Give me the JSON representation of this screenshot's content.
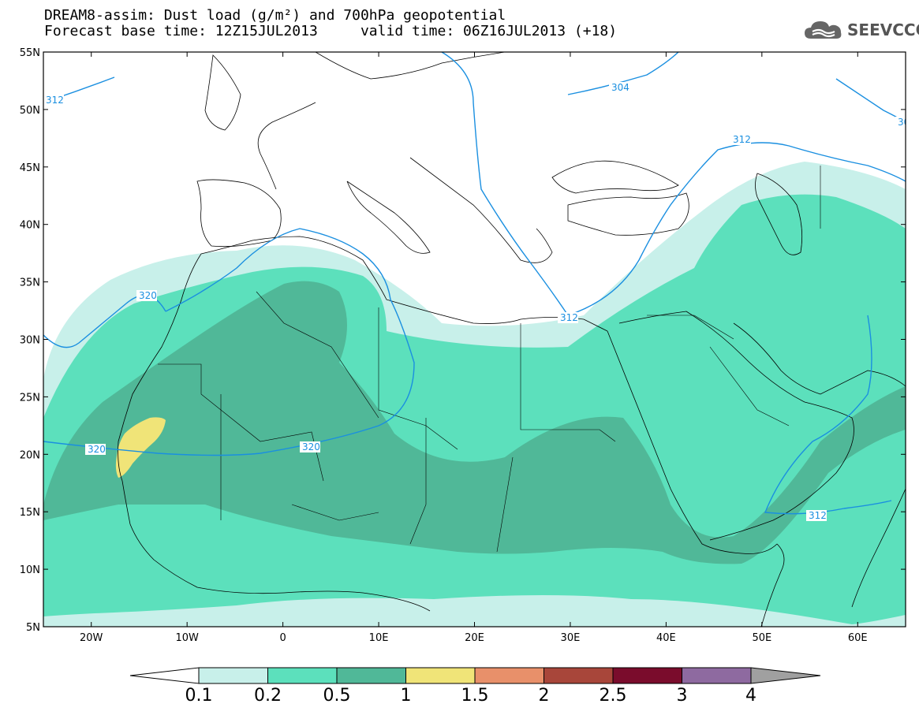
{
  "header": {
    "title_line1": "DREAM8-assim: Dust load (g/m²) and 700hPa geopotential",
    "title_line2": "Forecast base time: 12Z15JUL2013     valid time: 06Z16JUL2013 (+18)"
  },
  "logo": {
    "text": "SEEVCCC"
  },
  "axes": {
    "lat_labels": [
      "55N",
      "50N",
      "45N",
      "40N",
      "35N",
      "30N",
      "25N",
      "20N",
      "15N",
      "10N",
      "5N"
    ],
    "lon_labels": [
      "20W",
      "10W",
      "0",
      "10E",
      "20E",
      "30E",
      "40E",
      "50E",
      "60E"
    ],
    "lon_range": [
      -25,
      65
    ],
    "lat_range": [
      5,
      55
    ]
  },
  "contours": {
    "color": "#1a8fe0",
    "labels": [
      {
        "text": "312",
        "name": "contour-label-312-atlantic"
      },
      {
        "text": "304",
        "name": "contour-label-304-east-europe"
      },
      {
        "text": "312",
        "name": "contour-label-312-caspian"
      },
      {
        "text": "30",
        "name": "contour-label-30-edge"
      },
      {
        "text": "320",
        "name": "contour-label-320-canaries"
      },
      {
        "text": "312",
        "name": "contour-label-312-egypt"
      },
      {
        "text": "320",
        "name": "contour-label-320-west"
      },
      {
        "text": "320",
        "name": "contour-label-320-niger"
      },
      {
        "text": "312",
        "name": "contour-label-312-arabian-sea"
      }
    ]
  },
  "colorbar": {
    "labels": [
      "0.1",
      "0.2",
      "0.5",
      "1",
      "1.5",
      "2",
      "2.5",
      "3",
      "4"
    ],
    "colors": [
      "#c8f0ea",
      "#5ce0bc",
      "#50b898",
      "#f0e478",
      "#e8906a",
      "#a8463a",
      "#7a0c2c",
      "#8e6aa0"
    ],
    "under_color": "#ffffff",
    "over_color": "#a0a0a0"
  },
  "dust_levels": [
    {
      "level": "0.1-0.2",
      "color": "#c8f0ea"
    },
    {
      "level": "0.2-0.5",
      "color": "#5ce0bc"
    },
    {
      "level": "0.5-1",
      "color": "#50b898"
    },
    {
      "level": "1-1.5",
      "color": "#f0e478"
    }
  ]
}
